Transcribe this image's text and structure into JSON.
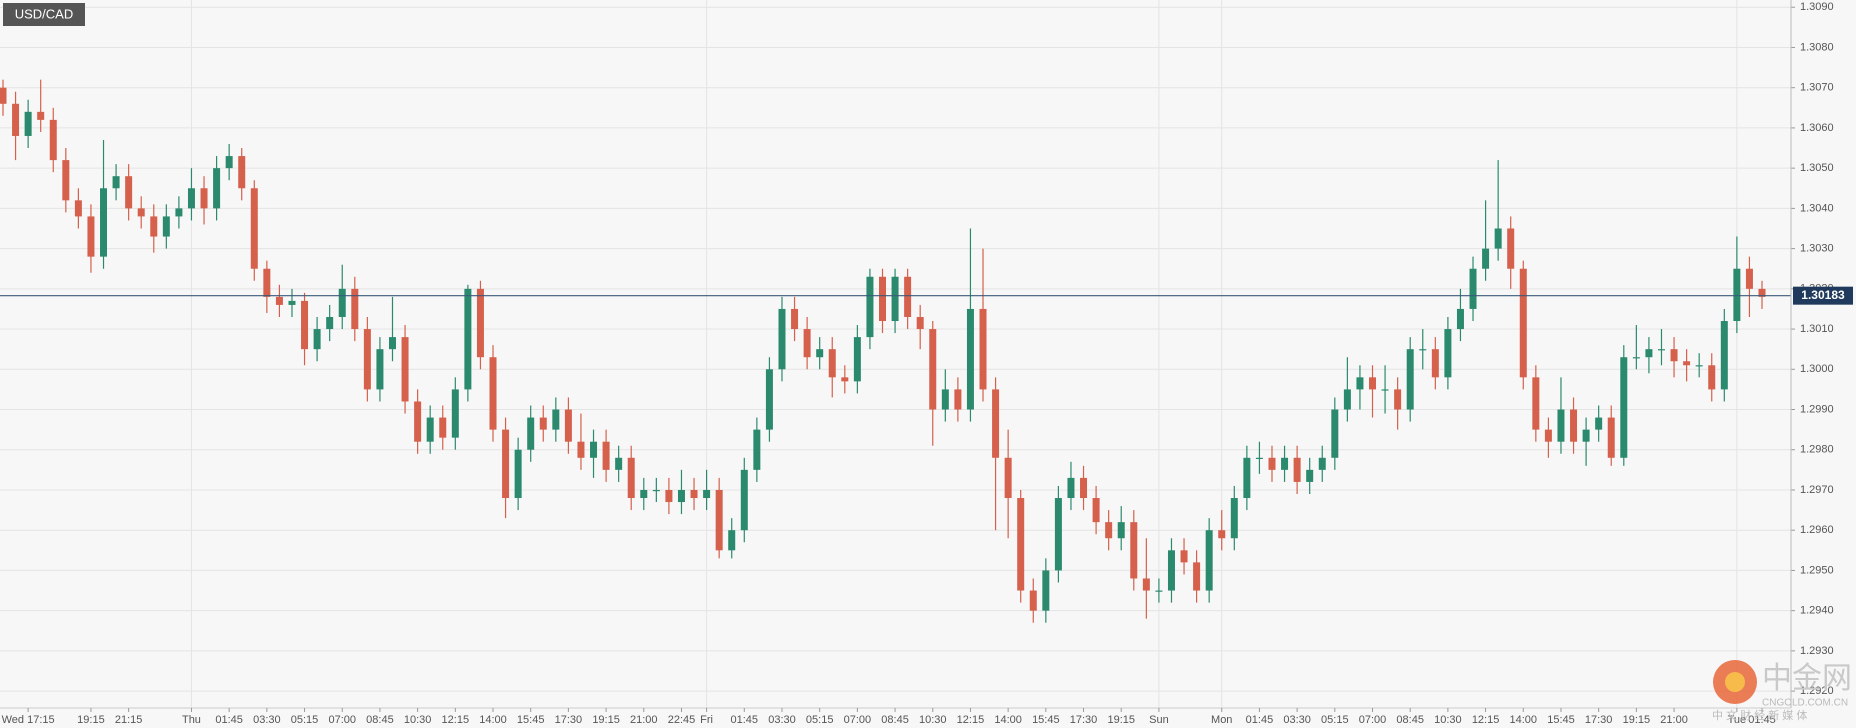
{
  "chart_data": {
    "type": "candlestick",
    "title": "USD/CAD",
    "current": 1.30183,
    "up_color": "#2b8a6e",
    "down_color": "#d5604c",
    "grid": true,
    "ylim": [
      1.29158,
      1.30918
    ],
    "yticks": [
      {
        "value": 1.292,
        "label": "1.2920"
      },
      {
        "value": 1.293,
        "label": "1.2930"
      },
      {
        "value": 1.294,
        "label": "1.2940"
      },
      {
        "value": 1.295,
        "label": "1.2950"
      },
      {
        "value": 1.296,
        "label": "1.2960"
      },
      {
        "value": 1.297,
        "label": "1.2970"
      },
      {
        "value": 1.298,
        "label": "1.2980"
      },
      {
        "value": 1.299,
        "label": "1.2990"
      },
      {
        "value": 1.3,
        "label": "1.3000"
      },
      {
        "value": 1.301,
        "label": "1.3010"
      },
      {
        "value": 1.302,
        "label": "1.3020"
      },
      {
        "value": 1.303,
        "label": "1.3030"
      },
      {
        "value": 1.304,
        "label": "1.3040"
      },
      {
        "value": 1.305,
        "label": "1.3050"
      },
      {
        "value": 1.306,
        "label": "1.3060"
      },
      {
        "value": 1.307,
        "label": "1.3070"
      },
      {
        "value": 1.308,
        "label": "1.3080"
      },
      {
        "value": 1.309,
        "label": "1.3090"
      }
    ],
    "categories": [
      null,
      null,
      "Wed 17:15",
      null,
      null,
      null,
      null,
      "19:15",
      null,
      null,
      "21:15",
      null,
      null,
      null,
      null,
      "Thu",
      null,
      null,
      "01:45",
      null,
      null,
      "03:30",
      null,
      null,
      "05:15",
      null,
      null,
      "07:00",
      null,
      null,
      "08:45",
      null,
      null,
      "10:30",
      null,
      null,
      "12:15",
      null,
      null,
      "14:00",
      null,
      null,
      "15:45",
      null,
      null,
      "17:30",
      null,
      null,
      "19:15",
      null,
      null,
      "21:00",
      null,
      null,
      "22:45",
      null,
      "Fri",
      null,
      null,
      "01:45",
      null,
      null,
      "03:30",
      null,
      null,
      "05:15",
      null,
      null,
      "07:00",
      null,
      null,
      "08:45",
      null,
      null,
      "10:30",
      null,
      null,
      "12:15",
      null,
      null,
      "14:00",
      null,
      null,
      "15:45",
      null,
      null,
      "17:30",
      null,
      null,
      "19:15",
      null,
      null,
      "Sun",
      null,
      null,
      null,
      null,
      "Mon",
      null,
      null,
      "01:45",
      null,
      null,
      "03:30",
      null,
      null,
      "05:15",
      null,
      null,
      "07:00",
      null,
      null,
      "08:45",
      null,
      null,
      "10:30",
      null,
      null,
      "12:15",
      null,
      null,
      "14:00",
      null,
      null,
      "15:45",
      null,
      null,
      "17:30",
      null,
      null,
      "19:15",
      null,
      null,
      "21:00",
      null,
      null,
      null,
      null,
      "Tue",
      null,
      "01:45"
    ],
    "ohlc": [
      [
        1.307,
        1.3072,
        1.3063,
        1.3066
      ],
      [
        1.3066,
        1.3069,
        1.3052,
        1.3058
      ],
      [
        1.3058,
        1.3067,
        1.3055,
        1.3064
      ],
      [
        1.3064,
        1.3072,
        1.3059,
        1.3062
      ],
      [
        1.3062,
        1.3065,
        1.3049,
        1.3052
      ],
      [
        1.3052,
        1.3055,
        1.3039,
        1.3042
      ],
      [
        1.3042,
        1.3045,
        1.3035,
        1.3038
      ],
      [
        1.3038,
        1.3041,
        1.3024,
        1.3028
      ],
      [
        1.3028,
        1.3057,
        1.3025,
        1.3045
      ],
      [
        1.3045,
        1.3051,
        1.3042,
        1.3048
      ],
      [
        1.3048,
        1.3051,
        1.3037,
        1.304
      ],
      [
        1.304,
        1.3043,
        1.3035,
        1.3038
      ],
      [
        1.3038,
        1.3041,
        1.3029,
        1.3033
      ],
      [
        1.3033,
        1.3041,
        1.303,
        1.3038
      ],
      [
        1.3038,
        1.3043,
        1.3035,
        1.304
      ],
      [
        1.304,
        1.305,
        1.3037,
        1.3045
      ],
      [
        1.3045,
        1.3048,
        1.3036,
        1.304
      ],
      [
        1.304,
        1.3053,
        1.3037,
        1.305
      ],
      [
        1.305,
        1.3056,
        1.3047,
        1.3053
      ],
      [
        1.3053,
        1.3055,
        1.3042,
        1.3045
      ],
      [
        1.3045,
        1.3047,
        1.3022,
        1.3025
      ],
      [
        1.3025,
        1.3027,
        1.3014,
        1.3018
      ],
      [
        1.3018,
        1.3021,
        1.3013,
        1.3016
      ],
      [
        1.3016,
        1.302,
        1.3013,
        1.3017
      ],
      [
        1.3017,
        1.3019,
        1.3001,
        1.3005
      ],
      [
        1.3005,
        1.3013,
        1.3002,
        1.301
      ],
      [
        1.301,
        1.3016,
        1.3007,
        1.3013
      ],
      [
        1.3013,
        1.3026,
        1.301,
        1.302
      ],
      [
        1.302,
        1.3023,
        1.3007,
        1.301
      ],
      [
        1.301,
        1.3013,
        1.2992,
        1.2995
      ],
      [
        1.2995,
        1.3008,
        1.2992,
        1.3005
      ],
      [
        1.3005,
        1.3018,
        1.3002,
        1.3008
      ],
      [
        1.3008,
        1.3011,
        1.2989,
        1.2992
      ],
      [
        1.2992,
        1.2995,
        1.2979,
        1.2982
      ],
      [
        1.2982,
        1.2991,
        1.2979,
        1.2988
      ],
      [
        1.2988,
        1.2991,
        1.298,
        1.2983
      ],
      [
        1.2983,
        1.2998,
        1.298,
        1.2995
      ],
      [
        1.2995,
        1.3021,
        1.2992,
        1.302
      ],
      [
        1.302,
        1.3022,
        1.3,
        1.3003
      ],
      [
        1.3003,
        1.3006,
        1.2982,
        1.2985
      ],
      [
        1.2985,
        1.2988,
        1.2963,
        1.2968
      ],
      [
        1.2968,
        1.2983,
        1.2965,
        1.298
      ],
      [
        1.298,
        1.2991,
        1.2977,
        1.2988
      ],
      [
        1.2988,
        1.2991,
        1.2982,
        1.2985
      ],
      [
        1.2985,
        1.2993,
        1.2982,
        1.299
      ],
      [
        1.299,
        1.2993,
        1.2979,
        1.2982
      ],
      [
        1.2982,
        1.2989,
        1.2975,
        1.2978
      ],
      [
        1.2978,
        1.2985,
        1.2973,
        1.2982
      ],
      [
        1.2982,
        1.2985,
        1.2972,
        1.2975
      ],
      [
        1.2975,
        1.2981,
        1.2972,
        1.2978
      ],
      [
        1.2978,
        1.2981,
        1.2965,
        1.2968
      ],
      [
        1.2968,
        1.2973,
        1.2965,
        1.297
      ],
      [
        1.297,
        1.2973,
        1.2967,
        1.297
      ],
      [
        1.297,
        1.2973,
        1.2964,
        1.2967
      ],
      [
        1.2967,
        1.2975,
        1.2964,
        1.297
      ],
      [
        1.297,
        1.2973,
        1.2965,
        1.2968
      ],
      [
        1.2968,
        1.2975,
        1.2965,
        1.297
      ],
      [
        1.297,
        1.2973,
        1.2953,
        1.2955
      ],
      [
        1.2955,
        1.2963,
        1.2953,
        1.296
      ],
      [
        1.296,
        1.2978,
        1.2957,
        1.2975
      ],
      [
        1.2975,
        1.2988,
        1.2972,
        1.2985
      ],
      [
        1.2985,
        1.3003,
        1.2982,
        1.3
      ],
      [
        1.3,
        1.3018,
        1.2997,
        1.3015
      ],
      [
        1.3015,
        1.3018,
        1.3007,
        1.301
      ],
      [
        1.301,
        1.3013,
        1.3,
        1.3003
      ],
      [
        1.3003,
        1.3008,
        1.3,
        1.3005
      ],
      [
        1.3005,
        1.3008,
        1.2993,
        1.2998
      ],
      [
        1.2998,
        1.3001,
        1.2994,
        1.2997
      ],
      [
        1.2997,
        1.3011,
        1.2994,
        1.3008
      ],
      [
        1.3008,
        1.3025,
        1.3005,
        1.3023
      ],
      [
        1.3023,
        1.3025,
        1.3009,
        1.3012
      ],
      [
        1.3012,
        1.3025,
        1.3009,
        1.3023
      ],
      [
        1.3023,
        1.3025,
        1.301,
        1.3013
      ],
      [
        1.3013,
        1.3016,
        1.3005,
        1.301
      ],
      [
        1.301,
        1.3012,
        1.2981,
        1.299
      ],
      [
        1.299,
        1.3,
        1.2987,
        1.2995
      ],
      [
        1.2995,
        1.2998,
        1.2987,
        1.299
      ],
      [
        1.299,
        1.3035,
        1.2987,
        1.3015
      ],
      [
        1.3015,
        1.303,
        1.2992,
        1.2995
      ],
      [
        1.2995,
        1.2998,
        1.296,
        1.2978
      ],
      [
        1.2978,
        1.2985,
        1.2958,
        1.2968
      ],
      [
        1.2968,
        1.297,
        1.2942,
        1.2945
      ],
      [
        1.2945,
        1.2948,
        1.2937,
        1.294
      ],
      [
        1.294,
        1.2953,
        1.2937,
        1.295
      ],
      [
        1.295,
        1.2971,
        1.2947,
        1.2968
      ],
      [
        1.2968,
        1.2977,
        1.2965,
        1.2973
      ],
      [
        1.2973,
        1.2976,
        1.2965,
        1.2968
      ],
      [
        1.2968,
        1.2971,
        1.2959,
        1.2962
      ],
      [
        1.2962,
        1.2965,
        1.2955,
        1.2958
      ],
      [
        1.2958,
        1.2966,
        1.2955,
        1.2962
      ],
      [
        1.2962,
        1.2965,
        1.2945,
        1.2948
      ],
      [
        1.2948,
        1.2958,
        1.2938,
        1.2945
      ],
      [
        1.2945,
        1.2948,
        1.2942,
        1.2945
      ],
      [
        1.2945,
        1.2958,
        1.2942,
        1.2955
      ],
      [
        1.2955,
        1.2958,
        1.2949,
        1.2952
      ],
      [
        1.2952,
        1.2955,
        1.2942,
        1.2945
      ],
      [
        1.2945,
        1.2963,
        1.2942,
        1.296
      ],
      [
        1.296,
        1.2965,
        1.2955,
        1.2958
      ],
      [
        1.2958,
        1.2971,
        1.2955,
        1.2968
      ],
      [
        1.2968,
        1.2981,
        1.2965,
        1.2978
      ],
      [
        1.2978,
        1.2982,
        1.2974,
        1.2978
      ],
      [
        1.2978,
        1.2981,
        1.2972,
        1.2975
      ],
      [
        1.2975,
        1.2981,
        1.2972,
        1.2978
      ],
      [
        1.2978,
        1.2981,
        1.2969,
        1.2972
      ],
      [
        1.2972,
        1.2978,
        1.2969,
        1.2975
      ],
      [
        1.2975,
        1.2981,
        1.2972,
        1.2978
      ],
      [
        1.2978,
        1.2993,
        1.2975,
        1.299
      ],
      [
        1.299,
        1.3003,
        1.2987,
        1.2995
      ],
      [
        1.2995,
        1.3001,
        1.299,
        1.2998
      ],
      [
        1.2998,
        1.3001,
        1.2988,
        1.2995
      ],
      [
        1.2995,
        1.3001,
        1.2989,
        1.2995
      ],
      [
        1.2995,
        1.2998,
        1.2985,
        1.299
      ],
      [
        1.299,
        1.3008,
        1.2987,
        1.3005
      ],
      [
        1.3005,
        1.301,
        1.3,
        1.3005
      ],
      [
        1.3005,
        1.3008,
        1.2995,
        1.2998
      ],
      [
        1.2998,
        1.3013,
        1.2995,
        1.301
      ],
      [
        1.301,
        1.302,
        1.3007,
        1.3015
      ],
      [
        1.3015,
        1.3028,
        1.3012,
        1.3025
      ],
      [
        1.3025,
        1.3042,
        1.3022,
        1.303
      ],
      [
        1.303,
        1.3052,
        1.3027,
        1.3035
      ],
      [
        1.3035,
        1.3038,
        1.302,
        1.3025
      ],
      [
        1.3025,
        1.3027,
        1.2995,
        1.2998
      ],
      [
        1.2998,
        1.3001,
        1.2982,
        1.2985
      ],
      [
        1.2985,
        1.2988,
        1.2978,
        1.2982
      ],
      [
        1.2982,
        1.2998,
        1.2979,
        1.299
      ],
      [
        1.299,
        1.2993,
        1.2979,
        1.2982
      ],
      [
        1.2982,
        1.2988,
        1.2976,
        1.2985
      ],
      [
        1.2985,
        1.2991,
        1.2982,
        1.2988
      ],
      [
        1.2988,
        1.2991,
        1.2976,
        1.2978
      ],
      [
        1.2978,
        1.3006,
        1.2976,
        1.3003
      ],
      [
        1.3003,
        1.3011,
        1.3,
        1.3003
      ],
      [
        1.3003,
        1.3008,
        1.2999,
        1.3005
      ],
      [
        1.3005,
        1.301,
        1.3001,
        1.3005
      ],
      [
        1.3005,
        1.3008,
        1.2998,
        1.3002
      ],
      [
        1.3002,
        1.3005,
        1.2997,
        1.3001
      ],
      [
        1.3001,
        1.3004,
        1.2998,
        1.3001
      ],
      [
        1.3001,
        1.3004,
        1.2992,
        1.2995
      ],
      [
        1.2995,
        1.3015,
        1.2992,
        1.3012
      ],
      [
        1.3012,
        1.3033,
        1.3009,
        1.3025
      ],
      [
        1.3025,
        1.3028,
        1.3013,
        1.302
      ],
      [
        1.302,
        1.3022,
        1.3015,
        1.3018
      ]
    ],
    "watermark": {
      "brand": "中金网",
      "site": "CNGOLD.COM.CN",
      "tagline": "中 文 财 经 新 媒 体"
    }
  }
}
